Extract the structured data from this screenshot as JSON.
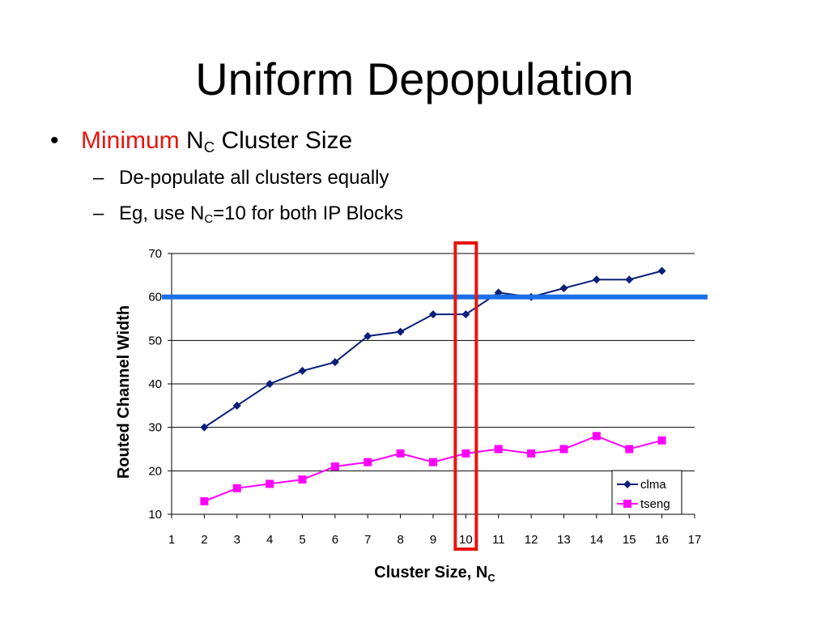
{
  "slide": {
    "title": "Uniform Depopulation",
    "bullet1": {
      "marker": "•",
      "accent": "Minimum",
      "n": "N",
      "n_sub": "C",
      "rest": "Cluster Size"
    },
    "bullet2": {
      "marker": "–",
      "text": "De-populate all clusters equally"
    },
    "bullet3": {
      "marker": "–",
      "pre": "Eg, use N",
      "sub": "C",
      "post": "=10 for both IP Blocks"
    }
  },
  "chart_data": {
    "type": "line",
    "title": "",
    "xlabel": "Cluster Size, N",
    "xlabel_sub": "C",
    "ylabel": "Routed Channel Width",
    "xlim": [
      1,
      17
    ],
    "ylim": [
      10,
      70
    ],
    "xticks": [
      1,
      2,
      3,
      4,
      5,
      6,
      7,
      8,
      9,
      10,
      11,
      12,
      13,
      14,
      15,
      16,
      17
    ],
    "yticks": [
      10,
      20,
      30,
      40,
      50,
      60,
      70
    ],
    "grid": "horizontal",
    "legend_position": "bottom-right",
    "series": [
      {
        "name": "clma",
        "color": "#0a1f7a",
        "marker": "diamond",
        "x": [
          2,
          3,
          4,
          5,
          6,
          7,
          8,
          9,
          10,
          11,
          12,
          13,
          14,
          15,
          16
        ],
        "values": [
          30,
          35,
          40,
          43,
          45,
          51,
          52,
          56,
          56,
          61,
          60,
          62,
          64,
          64,
          66
        ]
      },
      {
        "name": "tseng",
        "color": "#ff00ff",
        "marker": "square",
        "x": [
          2,
          3,
          4,
          5,
          6,
          7,
          8,
          9,
          10,
          11,
          12,
          13,
          14,
          15,
          16
        ],
        "values": [
          13,
          16,
          17,
          18,
          21,
          22,
          24,
          22,
          24,
          25,
          24,
          25,
          28,
          25,
          27
        ]
      }
    ],
    "annotations": {
      "threshold_line": {
        "y": 60,
        "color": "#1a6fe6"
      },
      "highlight_x": {
        "x": 10,
        "color": "#e8140c"
      }
    }
  }
}
